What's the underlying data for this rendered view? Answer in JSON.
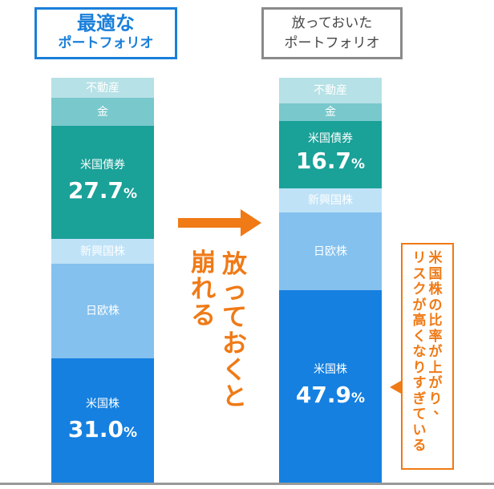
{
  "left_title": {
    "line1": "最適な",
    "line2": "ポートフォリオ"
  },
  "right_title": {
    "line1": "放っておいた",
    "line2": "ポートフォリオ"
  },
  "left_bar": {
    "segments": [
      {
        "label": "不動産",
        "value": null,
        "color": "#b6e1e6"
      },
      {
        "label": "金",
        "value": null,
        "color": "#78c8cc"
      },
      {
        "label": "米国債券",
        "value": "27.7",
        "unit": "%",
        "color": "#1aa198"
      },
      {
        "label": "新興国株",
        "value": null,
        "color": "#bfe2f7"
      },
      {
        "label": "日欧株",
        "value": null,
        "color": "#84c1ef"
      },
      {
        "label": "米国株",
        "value": "31.0",
        "unit": "%",
        "color": "#1580e0"
      }
    ]
  },
  "right_bar": {
    "segments": [
      {
        "label": "不動産",
        "value": null,
        "color": "#b6e1e6"
      },
      {
        "label": "金",
        "value": null,
        "color": "#78c8cc"
      },
      {
        "label": "米国債券",
        "value": "16.7",
        "unit": "%",
        "color": "#1aa198"
      },
      {
        "label": "新興国株",
        "value": null,
        "color": "#bfe2f7"
      },
      {
        "label": "日欧株",
        "value": null,
        "color": "#84c1ef"
      },
      {
        "label": "米国株",
        "value": "47.9",
        "unit": "%",
        "color": "#1580e0"
      }
    ]
  },
  "arrow_text": {
    "col1": "崩れる",
    "col2": "放っておくと"
  },
  "note": {
    "col1": "リスクが高くなりすぎている",
    "col2": "米国株の比率が上がり、"
  },
  "colors": {
    "accent": "#ef7a16",
    "title_blue": "#1a7fd9",
    "title_gray": "#8a8a8a"
  }
}
